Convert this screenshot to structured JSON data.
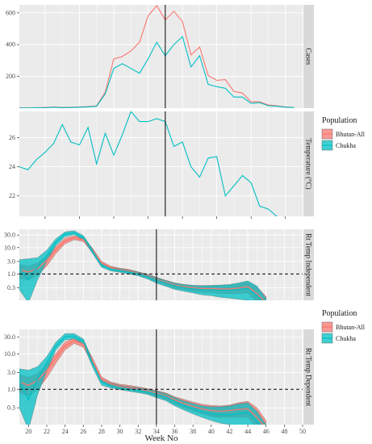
{
  "chart_data": [
    {
      "type": "line",
      "panel_label": "Cases",
      "x": [
        17,
        18,
        19,
        20,
        21,
        22,
        23,
        24,
        25,
        26,
        27,
        28,
        29,
        30,
        31,
        32,
        33,
        34,
        35,
        36,
        37,
        38,
        39,
        40,
        41,
        42,
        43,
        44,
        45,
        46,
        47,
        48,
        49
      ],
      "series": [
        {
          "name": "Bhutan-All",
          "values": [
            2,
            2,
            3,
            5,
            8,
            5,
            6,
            8,
            10,
            15,
            100,
            310,
            325,
            360,
            415,
            580,
            645,
            555,
            610,
            545,
            335,
            385,
            205,
            175,
            180,
            105,
            95,
            40,
            40,
            20,
            15,
            8,
            5
          ]
        },
        {
          "name": "Chukha",
          "values": [
            1,
            1,
            2,
            3,
            6,
            3,
            4,
            6,
            8,
            12,
            90,
            250,
            280,
            250,
            220,
            310,
            415,
            330,
            400,
            450,
            260,
            330,
            150,
            135,
            125,
            70,
            70,
            30,
            35,
            15,
            12,
            6,
            4
          ]
        }
      ],
      "xlim": [
        17,
        50
      ],
      "ylim": [
        0,
        650
      ],
      "yticks": [
        200,
        400,
        600
      ]
    },
    {
      "type": "line",
      "panel_label": "Temperature (°C)",
      "x": [
        17,
        18,
        19,
        20,
        21,
        22,
        23,
        24,
        25,
        26,
        27,
        28,
        29,
        30,
        31,
        32,
        33,
        34,
        35,
        36,
        37,
        38,
        39,
        40,
        41,
        42,
        43,
        44,
        45,
        46,
        47,
        48,
        49
      ],
      "series": [
        {
          "name": "Chukha",
          "values": [
            24.0,
            23.8,
            24.5,
            25.0,
            25.6,
            26.9,
            25.7,
            25.5,
            26.7,
            24.2,
            26.3,
            24.8,
            26.2,
            27.8,
            27.1,
            27.1,
            27.3,
            27.1,
            25.4,
            25.7,
            24.0,
            23.3,
            24.6,
            24.7,
            22.0,
            22.7,
            23.4,
            22.9,
            21.3,
            21.1,
            20.6,
            20.2,
            20.0
          ]
        }
      ],
      "xlim": [
        17,
        50
      ],
      "ylim": [
        20.6,
        27.8
      ],
      "yticks": [
        22,
        24,
        26
      ]
    },
    {
      "type": "area",
      "panel_label": "Rt Temp Independent",
      "x": [
        19,
        20,
        21,
        22,
        23,
        24,
        25,
        26,
        27,
        28,
        29,
        30,
        31,
        32,
        33,
        34,
        35,
        36,
        37,
        38,
        39,
        40,
        41,
        42,
        43,
        44,
        45,
        46
      ],
      "series": [
        {
          "name": "Bhutan-All",
          "values": [
            1.4,
            1.2,
            1.6,
            3.3,
            8.5,
            18,
            24,
            20,
            8,
            2.6,
            1.75,
            1.45,
            1.3,
            1.05,
            0.85,
            0.62,
            0.48,
            0.38,
            0.33,
            0.3,
            0.28,
            0.28,
            0.27,
            0.27,
            0.29,
            0.33,
            0.18,
            0.08
          ],
          "lower": [
            0.7,
            0.6,
            0.9,
            2.0,
            6.0,
            14,
            20,
            17,
            6.5,
            2.2,
            1.5,
            1.25,
            1.1,
            0.9,
            0.72,
            0.5,
            0.38,
            0.29,
            0.25,
            0.22,
            0.2,
            0.2,
            0.18,
            0.18,
            0.18,
            0.19,
            0.09,
            0.05
          ],
          "upper": [
            2.3,
            2.0,
            2.6,
            4.8,
            11,
            23,
            28,
            24,
            9.5,
            3.0,
            2.0,
            1.65,
            1.5,
            1.2,
            1.0,
            0.75,
            0.58,
            0.46,
            0.4,
            0.37,
            0.36,
            0.36,
            0.36,
            0.37,
            0.42,
            0.5,
            0.32,
            0.14
          ]
        },
        {
          "name": "Chukha",
          "values": [
            1.5,
            0.6,
            1.9,
            5.0,
            16,
            33,
            37,
            24,
            7.5,
            2.1,
            1.55,
            1.35,
            1.2,
            1.0,
            0.8,
            0.58,
            0.45,
            0.35,
            0.3,
            0.27,
            0.25,
            0.25,
            0.24,
            0.24,
            0.26,
            0.28,
            0.15,
            0.07
          ],
          "lower": [
            0.25,
            0.08,
            0.6,
            3.0,
            12,
            26,
            31,
            20,
            6.0,
            1.8,
            1.3,
            1.15,
            1.0,
            0.85,
            0.65,
            0.45,
            0.34,
            0.26,
            0.22,
            0.19,
            0.16,
            0.15,
            0.13,
            0.12,
            0.11,
            0.1,
            0.06,
            0.04
          ],
          "upper": [
            3.5,
            3.8,
            4.2,
            8.0,
            22,
            40,
            44,
            29,
            9.0,
            2.5,
            1.8,
            1.6,
            1.4,
            1.18,
            0.95,
            0.72,
            0.56,
            0.45,
            0.4,
            0.37,
            0.36,
            0.37,
            0.38,
            0.4,
            0.46,
            0.55,
            0.35,
            0.12
          ]
        }
      ],
      "xlim": [
        19,
        50
      ],
      "ylim": [
        0.1,
        50
      ],
      "yscale": "log",
      "yticks": [
        0.3,
        1.0,
        3.0,
        10.0,
        30.0
      ],
      "reference_line": 1.0
    },
    {
      "type": "area",
      "panel_label": "Rt Temp Dependent",
      "x": [
        19,
        20,
        21,
        22,
        23,
        24,
        25,
        26,
        27,
        28,
        29,
        30,
        31,
        32,
        33,
        34,
        35,
        36,
        37,
        38,
        39,
        40,
        41,
        42,
        43,
        44,
        45,
        46
      ],
      "series": [
        {
          "name": "Bhutan-All",
          "values": [
            1.6,
            1.3,
            1.8,
            3.4,
            8.0,
            17,
            24,
            19,
            6.5,
            1.9,
            1.4,
            1.2,
            1.1,
            1.0,
            0.9,
            0.78,
            0.66,
            0.5,
            0.4,
            0.33,
            0.28,
            0.25,
            0.24,
            0.25,
            0.27,
            0.28,
            0.16,
            0.08
          ],
          "lower": [
            0.8,
            0.65,
            1.0,
            2.1,
            5.5,
            13,
            20,
            15.5,
            5.3,
            1.6,
            1.2,
            1.02,
            0.95,
            0.86,
            0.76,
            0.63,
            0.52,
            0.38,
            0.3,
            0.24,
            0.2,
            0.17,
            0.16,
            0.16,
            0.16,
            0.16,
            0.08,
            0.05
          ],
          "upper": [
            2.6,
            2.2,
            2.8,
            5.0,
            10.5,
            22,
            28,
            23,
            7.8,
            2.25,
            1.62,
            1.4,
            1.3,
            1.18,
            1.05,
            0.93,
            0.8,
            0.62,
            0.52,
            0.44,
            0.38,
            0.35,
            0.34,
            0.36,
            0.42,
            0.46,
            0.3,
            0.13
          ]
        },
        {
          "name": "Chukha",
          "values": [
            1.8,
            0.5,
            2.0,
            5.5,
            17,
            31,
            32,
            23,
            5.5,
            1.6,
            1.3,
            1.12,
            1.02,
            0.95,
            0.85,
            0.73,
            0.62,
            0.45,
            0.35,
            0.28,
            0.23,
            0.2,
            0.19,
            0.19,
            0.2,
            0.22,
            0.12,
            0.06
          ],
          "lower": [
            0.3,
            0.07,
            0.7,
            3.3,
            13,
            25,
            27,
            19,
            4.3,
            1.3,
            1.1,
            0.98,
            0.88,
            0.8,
            0.72,
            0.58,
            0.48,
            0.34,
            0.26,
            0.2,
            0.16,
            0.13,
            0.11,
            0.1,
            0.09,
            0.09,
            0.05,
            0.04
          ],
          "upper": [
            3.8,
            3.5,
            4.4,
            8.5,
            22,
            38,
            38,
            27,
            6.8,
            1.95,
            1.5,
            1.3,
            1.18,
            1.1,
            1.0,
            0.88,
            0.76,
            0.58,
            0.47,
            0.4,
            0.34,
            0.32,
            0.32,
            0.34,
            0.39,
            0.42,
            0.24,
            0.1
          ]
        }
      ],
      "xlim": [
        19,
        50
      ],
      "ylim": [
        0.1,
        50
      ],
      "yscale": "log",
      "yticks": [
        0.3,
        1.0,
        3.0,
        10.0,
        30.0
      ],
      "reference_line": 1.0
    }
  ],
  "shared": {
    "xlabel": "Week No",
    "xticks_top": [
      20,
      24,
      28,
      32,
      36,
      40,
      44,
      48
    ],
    "xticks_bottom": [
      20,
      22,
      24,
      26,
      28,
      30,
      32,
      34,
      36,
      38,
      40,
      42,
      44,
      46,
      48,
      50
    ],
    "vline_week": 34,
    "legend_title": "Population",
    "legend_entries": [
      "Bhutan-All",
      "Chukha"
    ],
    "colors": {
      "Bhutan-All": "#F8766D",
      "Chukha": "#00BFC4",
      "panel_bg": "#EBEBEB",
      "grid": "#FFFFFF",
      "strip_bg": "#D9D9D9"
    }
  }
}
